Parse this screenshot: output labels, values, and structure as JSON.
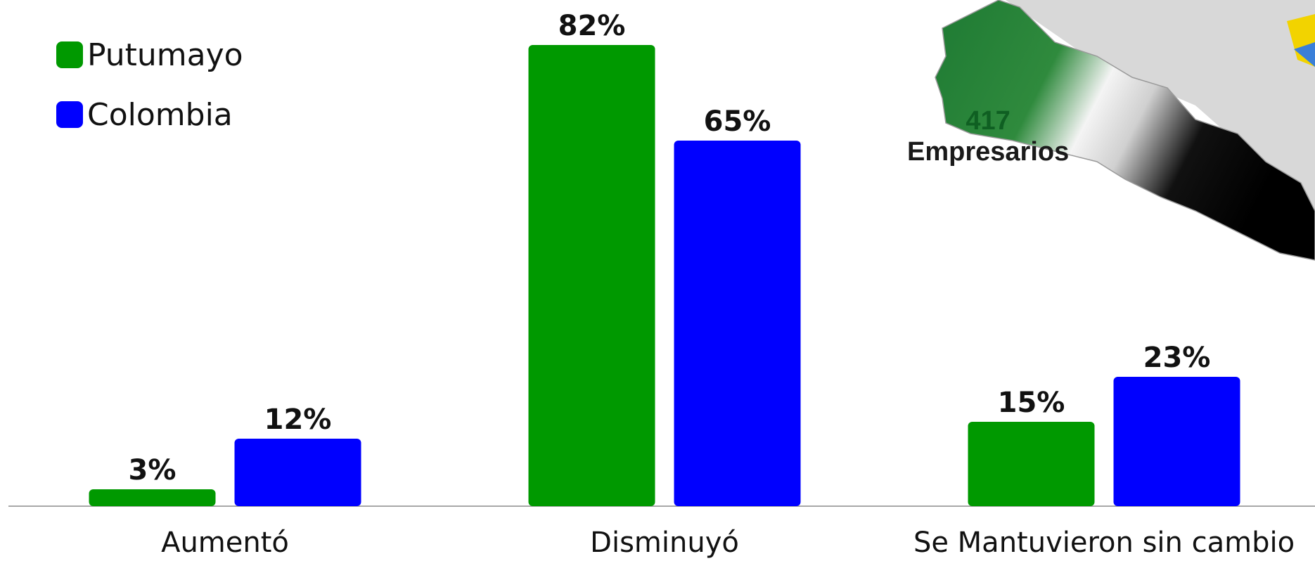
{
  "legend": [
    {
      "label": "Putumayo",
      "color": "#009900"
    },
    {
      "label": "Colombia",
      "color": "#0000ff"
    }
  ],
  "map": {
    "count": "417",
    "label": "Empresarios"
  },
  "chart_data": {
    "type": "bar",
    "categories": [
      "Aumentó",
      "Disminuyó",
      "Se Mantuvieron sin cambio"
    ],
    "series": [
      {
        "name": "Putumayo",
        "values": [
          3,
          82,
          15
        ],
        "labels": [
          "3%",
          "82%",
          "15%"
        ],
        "color": "#009900"
      },
      {
        "name": "Colombia",
        "values": [
          12,
          65,
          23
        ],
        "labels": [
          "12%",
          "65%",
          "23%"
        ],
        "color": "#0000ff"
      }
    ],
    "ylim": [
      0,
      100
    ],
    "grid": false,
    "legend_position": "top-left"
  }
}
